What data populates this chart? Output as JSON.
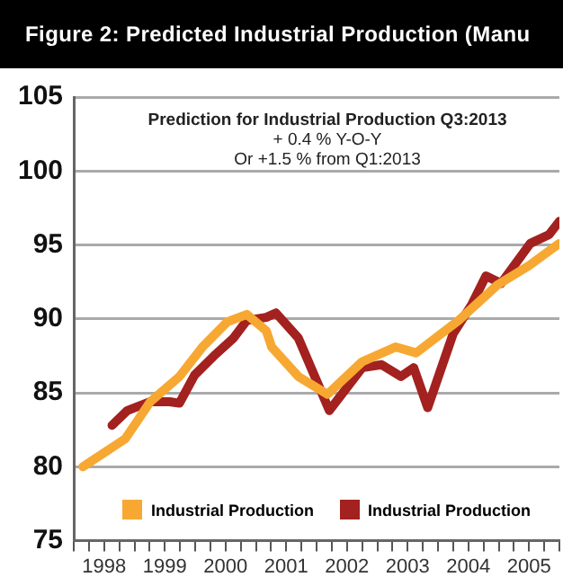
{
  "chart_data": {
    "type": "line",
    "title": "Figure 2: Predicted Industrial Production (Manu",
    "annotations": [
      "Prediction for Industrial Production Q3:2013",
      "+ 0.4 % Y-O-Y",
      "Or +1.5 % from Q1:2013"
    ],
    "series": [
      {
        "name": "Industrial Production",
        "color": "#f7a833",
        "x": [
          1998.15,
          1998.85,
          1999.26,
          1999.74,
          2000.12,
          2000.53,
          2000.85,
          2001.17,
          2001.26,
          2001.7,
          2002.18,
          2002.75,
          2003.3,
          2003.64,
          2004.34,
          2004.98,
          2005.5,
          2006.0
        ],
        "values": [
          80.0,
          81.9,
          84.4,
          86.1,
          88.1,
          89.8,
          90.3,
          89.2,
          88.1,
          86.1,
          84.9,
          87.1,
          88.1,
          87.7,
          89.9,
          92.3,
          93.6,
          95.1
        ]
      },
      {
        "name": "Industrial Production",
        "color": "#a3211f",
        "x": [
          1998.63,
          1998.88,
          1999.26,
          1999.58,
          1999.74,
          1999.99,
          2000.31,
          2000.63,
          2000.85,
          2001.17,
          2001.33,
          2001.7,
          2002.21,
          2002.75,
          2003.07,
          2003.39,
          2003.6,
          2003.83,
          2004.25,
          2004.56,
          2004.79,
          2005.04,
          2005.52,
          2005.83,
          2006.0
        ],
        "values": [
          82.8,
          83.8,
          84.4,
          84.4,
          84.3,
          86.2,
          87.5,
          88.7,
          89.9,
          90.1,
          90.4,
          88.7,
          83.8,
          86.7,
          86.9,
          86.1,
          86.7,
          84.0,
          89.0,
          91.0,
          92.9,
          92.4,
          95.1,
          95.7,
          96.6
        ]
      }
    ],
    "xlim": [
      1998,
      2006
    ],
    "xticks": [
      {
        "value": 1998,
        "label": null
      },
      {
        "value": 1998.25,
        "label": null
      },
      {
        "value": 1998.5,
        "label": "1998"
      },
      {
        "value": 1998.75,
        "label": null
      },
      {
        "value": 1999,
        "label": null
      },
      {
        "value": 1999.25,
        "label": null
      },
      {
        "value": 1999.5,
        "label": "1999"
      },
      {
        "value": 1999.75,
        "label": null
      },
      {
        "value": 2000,
        "label": null
      },
      {
        "value": 2000.25,
        "label": null
      },
      {
        "value": 2000.5,
        "label": "2000"
      },
      {
        "value": 2000.75,
        "label": null
      },
      {
        "value": 2001,
        "label": null
      },
      {
        "value": 2001.25,
        "label": null
      },
      {
        "value": 2001.5,
        "label": "2001"
      },
      {
        "value": 2001.75,
        "label": null
      },
      {
        "value": 2002,
        "label": null
      },
      {
        "value": 2002.25,
        "label": null
      },
      {
        "value": 2002.5,
        "label": "2002"
      },
      {
        "value": 2002.75,
        "label": null
      },
      {
        "value": 2003,
        "label": null
      },
      {
        "value": 2003.25,
        "label": null
      },
      {
        "value": 2003.5,
        "label": "2003"
      },
      {
        "value": 2003.75,
        "label": null
      },
      {
        "value": 2004,
        "label": null
      },
      {
        "value": 2004.25,
        "label": null
      },
      {
        "value": 2004.5,
        "label": "2004"
      },
      {
        "value": 2004.75,
        "label": null
      },
      {
        "value": 2005,
        "label": null
      },
      {
        "value": 2005.25,
        "label": null
      },
      {
        "value": 2005.5,
        "label": "2005"
      },
      {
        "value": 2005.75,
        "label": null
      },
      {
        "value": 2006,
        "label": null
      }
    ],
    "ylim": [
      75,
      105
    ],
    "yticks": [
      75,
      80,
      85,
      90,
      95,
      100,
      105
    ],
    "grid": "y",
    "legend": "bottom",
    "marker": "none",
    "line_style": "solid"
  }
}
